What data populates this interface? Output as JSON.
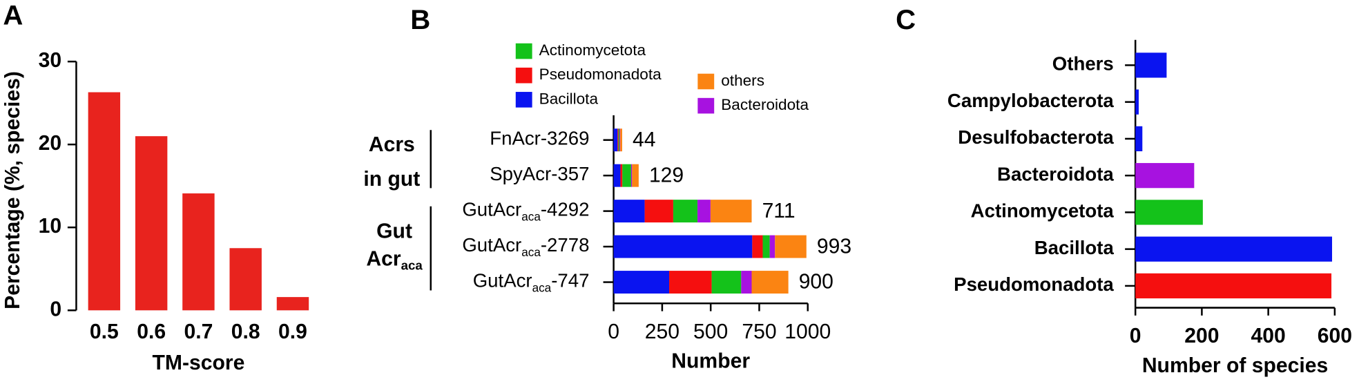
{
  "chart_data": [
    {
      "type": "bar",
      "panel": "A",
      "xlabel": "TM-score",
      "ylabel": "Percentage (%, species)",
      "categories": [
        "0.5",
        "0.6",
        "0.7",
        "0.8",
        "0.9"
      ],
      "values": [
        26.3,
        21.0,
        14.1,
        7.5,
        1.6
      ],
      "color": "#e8231e",
      "ylim": [
        0,
        30
      ],
      "yticks": [
        0,
        10,
        20,
        30
      ]
    },
    {
      "type": "bar",
      "panel": "B",
      "horizontal": true,
      "stacked": true,
      "xlabel": "Number",
      "categories": [
        [
          "FnAcr-3269"
        ],
        [
          "SpyAcr-357"
        ],
        [
          "GutAcr",
          "aca",
          "-4292"
        ],
        [
          "GutAcr",
          "aca",
          "-2778"
        ],
        [
          "GutAcr",
          "aca",
          "-747"
        ]
      ],
      "groups": [
        [
          [
            "Acrs"
          ],
          [
            "in gut"
          ]
        ],
        [
          [
            "Gut"
          ],
          [
            "Acr",
            "aca"
          ]
        ]
      ],
      "series": [
        {
          "name": "Bacillota",
          "color": "#0a14f0",
          "values": [
            20,
            35,
            160,
            714,
            286
          ]
        },
        {
          "name": "Pseudomonadota",
          "color": "#f50f0f",
          "values": [
            5,
            10,
            147,
            54,
            219
          ]
        },
        {
          "name": "Actinomycetota",
          "color": "#14c21a",
          "values": [
            5,
            45,
            125,
            36,
            152
          ]
        },
        {
          "name": "Bacteroidota",
          "color": "#a712e0",
          "values": [
            4,
            5,
            67,
            27,
            54
          ]
        },
        {
          "name": "others",
          "color": "#fb8412",
          "values": [
            10,
            34,
            212,
            162,
            189
          ]
        }
      ],
      "totals": [
        44,
        129,
        711,
        993,
        900
      ],
      "xlim": [
        0,
        1000
      ],
      "xticks": [
        0,
        250,
        500,
        750,
        1000
      ]
    },
    {
      "type": "bar",
      "panel": "C",
      "horizontal": true,
      "xlabel": "Number of species",
      "categories": [
        "Others",
        "Campylobacterota",
        "Desulfobacterota",
        "Bacteroidota",
        "Actinomycetota",
        "Bacillota",
        "Pseudomonadota"
      ],
      "values": [
        94,
        10,
        21,
        177,
        203,
        592,
        590
      ],
      "colors": [
        "#0a14f0",
        "#0a14f0",
        "#0a14f0",
        "#a712e0",
        "#14c21a",
        "#0a14f0",
        "#f50f0f"
      ],
      "xlim": [
        0,
        600
      ],
      "xticks": [
        0,
        200,
        400,
        600
      ]
    }
  ]
}
